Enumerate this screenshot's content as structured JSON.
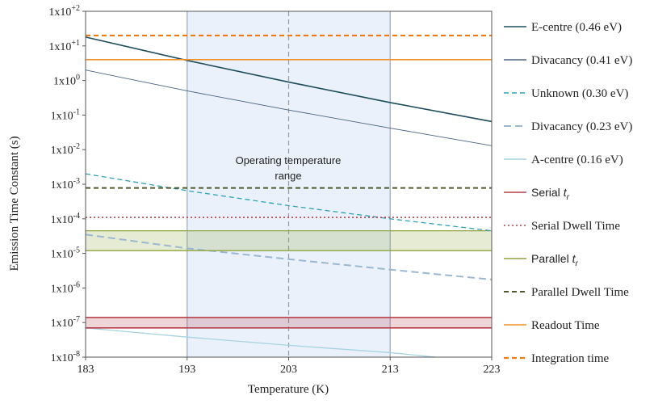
{
  "chart_data": {
    "type": "line",
    "xlabel": "Temperature (K)",
    "ylabel": "Emission Time Constant (s)",
    "y_scale": "log",
    "xlim": [
      183,
      223
    ],
    "ylim": [
      1e-08,
      100
    ],
    "x_ticks": [
      183,
      193,
      203,
      213,
      223
    ],
    "x_tick_labels": [
      "183",
      "193",
      "203",
      "213",
      "223"
    ],
    "y_ticks": [
      1e-08,
      1e-07,
      1e-06,
      1e-05,
      0.0001,
      0.001,
      0.01,
      0.1,
      1,
      10,
      100
    ],
    "y_tick_labels": [
      {
        "base": "1x10",
        "exp": "-8"
      },
      {
        "base": "1x10",
        "exp": "-7"
      },
      {
        "base": "1x10",
        "exp": "-6"
      },
      {
        "base": "1x10",
        "exp": "-5"
      },
      {
        "base": "1x10",
        "exp": "-4"
      },
      {
        "base": "1x10",
        "exp": "-3"
      },
      {
        "base": "1x10",
        "exp": "-2"
      },
      {
        "base": "1x10",
        "exp": "-1"
      },
      {
        "base": "1x10",
        "exp": "0"
      },
      {
        "base": "1x10",
        "exp": "+1"
      },
      {
        "base": "1x10",
        "exp": "+2"
      }
    ],
    "grid": false,
    "legend_position": "right",
    "annotation": {
      "operating_range": [
        193,
        213
      ],
      "line1": "Operating temperature",
      "line2": "range",
      "center_line_x": 203
    },
    "bands": [
      {
        "name": "Serial band",
        "y_low": 7e-08,
        "y_high": 1.4e-07,
        "color": "#b7404a"
      },
      {
        "name": "Parallel band",
        "y_low": 1.2e-05,
        "y_high": 4.5e-05,
        "color": "#8fa43c"
      }
    ],
    "series": [
      {
        "name": "E-centre (0.46 eV)",
        "font": "serif",
        "color": "#1e4e5e",
        "dash": "solid",
        "width": 1.6,
        "x": [
          183,
          193,
          203,
          213,
          223
        ],
        "y": [
          18,
          3.8,
          0.9,
          0.23,
          0.065
        ]
      },
      {
        "name": "Divacancy (0.41 eV)",
        "font": "serif",
        "color": "#4a6384",
        "dash": "solid",
        "width": 0.9,
        "x": [
          183,
          193,
          203,
          213,
          223
        ],
        "y": [
          2,
          0.5,
          0.14,
          0.042,
          0.013
        ]
      },
      {
        "name": "Unknown (0.30 eV)",
        "font": "serif",
        "color": "#2aa2b8",
        "dash": "dash",
        "width": 1.3,
        "x": [
          183,
          193,
          203,
          213,
          223
        ],
        "y": [
          0.002,
          0.00065,
          0.00024,
          0.0001,
          4.5e-05
        ]
      },
      {
        "name": "Divacancy (0.23 eV)",
        "font": "serif",
        "color": "#9ab8d2",
        "dash": "longdash",
        "width": 2,
        "x": [
          183,
          193,
          203,
          213,
          223
        ],
        "y": [
          3.5e-05,
          1.4e-05,
          6.8e-06,
          3.4e-06,
          1.75e-06
        ]
      },
      {
        "name": "A-centre (0.16 eV)",
        "font": "serif",
        "color": "#a6d4e0",
        "dash": "solid",
        "width": 1.3,
        "x": [
          183,
          193,
          203,
          213,
          217.5
        ],
        "y": [
          7e-08,
          3.8e-08,
          2.2e-08,
          1.35e-08,
          1e-08
        ]
      },
      {
        "name": "Serial ",
        "name_sub": "r",
        "font": "sans",
        "color": "#b7404a",
        "dash": "solid",
        "width": 1.6,
        "x": [
          183,
          223
        ],
        "y": [
          7e-08,
          7e-08
        ]
      },
      {
        "name": "Serial Dwell Time",
        "font": "serif",
        "color": "#b7404a",
        "dash": "dot",
        "width": 1.6,
        "x": [
          183,
          223
        ],
        "y": [
          0.00011,
          0.00011
        ]
      },
      {
        "name": "Parallel ",
        "name_sub": "r",
        "font": "sans",
        "color": "#8fa43c",
        "dash": "solid",
        "width": 1.3,
        "x": [
          183,
          223
        ],
        "y": [
          1.2e-05,
          1.2e-05
        ]
      },
      {
        "name": "Parallel Dwell Time",
        "font": "serif",
        "color": "#4e5a2e",
        "dash": "dash",
        "width": 2,
        "x": [
          183,
          223
        ],
        "y": [
          0.00078,
          0.00078
        ]
      },
      {
        "name": "Readout Time",
        "font": "serif",
        "color": "#f0922a",
        "dash": "solid",
        "width": 1.6,
        "x": [
          183,
          223
        ],
        "y": [
          4,
          4
        ]
      },
      {
        "name": "Integration time",
        "font": "serif",
        "color": "#ee7a12",
        "dash": "dash",
        "width": 2.2,
        "x": [
          183,
          223
        ],
        "y": [
          20,
          20
        ]
      }
    ],
    "extra_marks": [
      {
        "name": "serial-band-top-line",
        "color": "#b7404a",
        "width": 1.6,
        "y": 1.4e-07
      },
      {
        "name": "parallel-band-top-line",
        "color": "#8fa43c",
        "width": 1.3,
        "y": 4.5e-05
      }
    ]
  }
}
